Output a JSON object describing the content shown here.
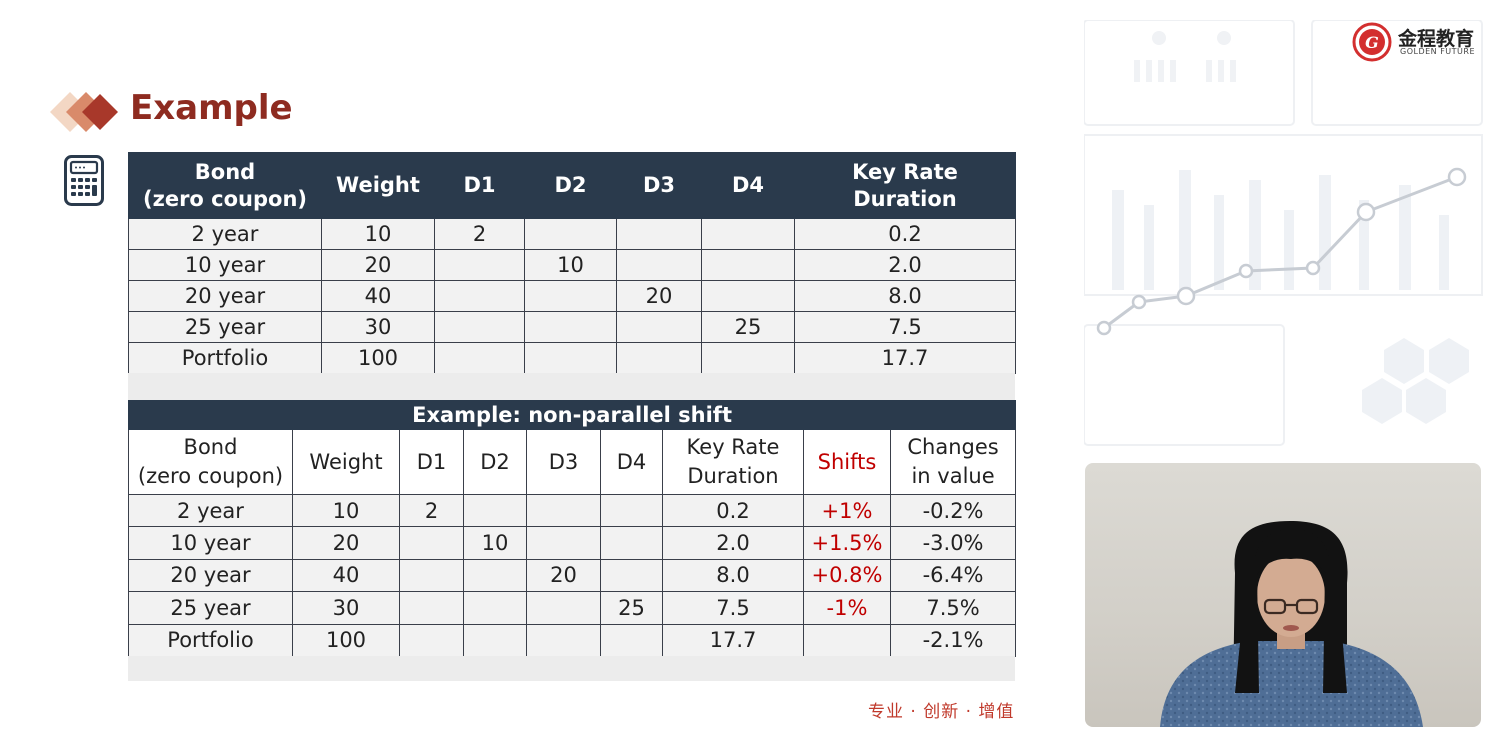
{
  "slide": {
    "title": "Example",
    "slogan": "专业 · 创新 · 增值"
  },
  "logo": {
    "cn": "金程教育",
    "en": "GOLDEN FUTURE",
    "mark": "G"
  },
  "table1": {
    "headers": [
      [
        "Bond",
        "(zero coupon)"
      ],
      [
        "Weight"
      ],
      [
        "D1"
      ],
      [
        "D2"
      ],
      [
        "D3"
      ],
      [
        "D4"
      ],
      [
        "Key Rate",
        "Duration"
      ]
    ],
    "rows": [
      [
        "2 year",
        "10",
        "2",
        "",
        "",
        "",
        "0.2"
      ],
      [
        "10 year",
        "20",
        "",
        "10",
        "",
        "",
        "2.0"
      ],
      [
        "20 year",
        "40",
        "",
        "",
        "20",
        "",
        "8.0"
      ],
      [
        "25 year",
        "30",
        "",
        "",
        "",
        "25",
        "7.5"
      ],
      [
        "Portfolio",
        "100",
        "",
        "",
        "",
        "",
        "17.7"
      ]
    ]
  },
  "table2": {
    "caption": "Example: non-parallel shift",
    "headers": [
      [
        "Bond",
        "(zero coupon)"
      ],
      [
        "Weight"
      ],
      [
        "D1"
      ],
      [
        "D2"
      ],
      [
        "D3"
      ],
      [
        "D4"
      ],
      [
        "Key Rate",
        "Duration"
      ],
      [
        "Shifts"
      ],
      [
        "Changes",
        "in value"
      ]
    ],
    "rows": [
      [
        "2 year",
        "10",
        "2",
        "",
        "",
        "",
        "0.2",
        "+1%",
        "-0.2%"
      ],
      [
        "10 year",
        "20",
        "",
        "10",
        "",
        "",
        "2.0",
        "+1.5%",
        "-3.0%"
      ],
      [
        "20 year",
        "40",
        "",
        "",
        "20",
        "",
        "8.0",
        "+0.8%",
        "-6.4%"
      ],
      [
        "25 year",
        "30",
        "",
        "",
        "",
        "25",
        "7.5",
        "-1%",
        "7.5%"
      ],
      [
        "Portfolio",
        "100",
        "",
        "",
        "",
        "",
        "17.7",
        "",
        "-2.1%"
      ]
    ]
  },
  "colors": {
    "title": "#8e2b20",
    "header_bg": "#2a3a4c",
    "shift_text": "#c00000",
    "slogan": "#c0392b"
  },
  "icons": [
    "diamond-bullet-icon",
    "calculator-icon",
    "golden-future-logo-icon"
  ]
}
